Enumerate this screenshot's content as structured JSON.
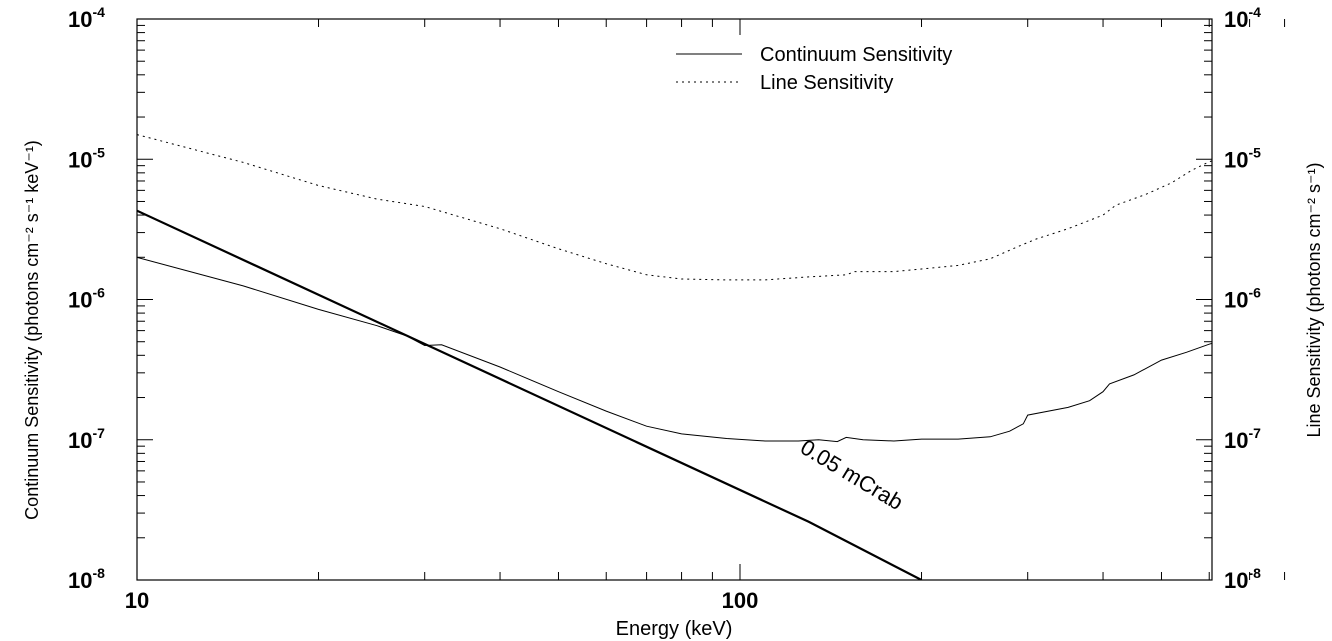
{
  "chart_data": {
    "type": "line",
    "title": "",
    "xlabel": "Energy (keV)",
    "ylabel_left": "Continuum Sensitivity (photons cm⁻² s⁻¹ keV⁻¹)",
    "ylabel_right": "Line Sensitivity (photons cm⁻² s⁻¹)",
    "xscale": "log",
    "yscale": "log",
    "xlim": [
      10,
      800
    ],
    "ylim": [
      1e-08,
      0.0001
    ],
    "x_ticks": [
      10,
      100
    ],
    "x_tick_labels": [
      "10",
      "100"
    ],
    "y_ticks": [
      1e-08,
      1e-07,
      1e-06,
      1e-05,
      0.0001
    ],
    "y_tick_labels": [
      {
        "base": "10",
        "exp": "-8"
      },
      {
        "base": "10",
        "exp": "-7"
      },
      {
        "base": "10",
        "exp": "-6"
      },
      {
        "base": "10",
        "exp": "-5"
      },
      {
        "base": "10",
        "exp": "-4"
      }
    ],
    "grid": false,
    "legend_position": "top-right",
    "series": [
      {
        "name": "Continuum Sensitivity",
        "style": "solid",
        "color": "#000000",
        "points": [
          [
            10,
            2e-06
          ],
          [
            15,
            1.25e-06
          ],
          [
            20,
            8.5e-07
          ],
          [
            25,
            6.5e-07
          ],
          [
            28,
            5.5e-07
          ],
          [
            30,
            4.7e-07
          ],
          [
            32,
            4.75e-07
          ],
          [
            40,
            3.3e-07
          ],
          [
            50,
            2.2e-07
          ],
          [
            60,
            1.6e-07
          ],
          [
            70,
            1.25e-07
          ],
          [
            80,
            1.1e-07
          ],
          [
            95,
            1.02e-07
          ],
          [
            110,
            9.8e-08
          ],
          [
            125,
            9.8e-08
          ],
          [
            135,
            1e-07
          ],
          [
            145,
            9.7e-08
          ],
          [
            150,
            1.04e-07
          ],
          [
            160,
            1e-07
          ],
          [
            180,
            9.8e-08
          ],
          [
            200,
            1.01e-07
          ],
          [
            230,
            1.01e-07
          ],
          [
            260,
            1.05e-07
          ],
          [
            280,
            1.15e-07
          ],
          [
            295,
            1.3e-07
          ],
          [
            300,
            1.5e-07
          ],
          [
            350,
            1.7e-07
          ],
          [
            380,
            1.9e-07
          ],
          [
            400,
            2.2e-07
          ],
          [
            410,
            2.5e-07
          ],
          [
            450,
            2.9e-07
          ],
          [
            500,
            3.7e-07
          ],
          [
            550,
            4.2e-07
          ],
          [
            600,
            4.8e-07
          ],
          [
            620,
            5e-07
          ]
        ]
      },
      {
        "name": "Line Sensitivity",
        "style": "dotted",
        "color": "#000000",
        "points": [
          [
            10,
            1.5e-05
          ],
          [
            15,
            9.5e-06
          ],
          [
            20,
            6.5e-06
          ],
          [
            25,
            5.2e-06
          ],
          [
            30,
            4.6e-06
          ],
          [
            40,
            3.2e-06
          ],
          [
            50,
            2.3e-06
          ],
          [
            60,
            1.8e-06
          ],
          [
            70,
            1.5e-06
          ],
          [
            80,
            1.4e-06
          ],
          [
            95,
            1.38e-06
          ],
          [
            110,
            1.38e-06
          ],
          [
            130,
            1.45e-06
          ],
          [
            150,
            1.5e-06
          ],
          [
            155,
            1.58e-06
          ],
          [
            180,
            1.58e-06
          ],
          [
            200,
            1.65e-06
          ],
          [
            230,
            1.75e-06
          ],
          [
            260,
            1.95e-06
          ],
          [
            290,
            2.4e-06
          ],
          [
            310,
            2.7e-06
          ],
          [
            350,
            3.2e-06
          ],
          [
            400,
            4e-06
          ],
          [
            420,
            4.7e-06
          ],
          [
            470,
            5.6e-06
          ],
          [
            520,
            6.8e-06
          ],
          [
            560,
            8.3e-06
          ],
          [
            600,
            9.6e-06
          ],
          [
            620,
            1e-05
          ]
        ]
      },
      {
        "name": "0.05 mCrab",
        "style": "solid-bold",
        "color": "#000000",
        "label": "0.05 mCrab",
        "points": [
          [
            10,
            4.3e-06
          ],
          [
            130,
            2.6e-08
          ],
          [
            200,
            1e-08
          ]
        ]
      }
    ],
    "legend": [
      {
        "label": "Continuum Sensitivity",
        "style": "solid"
      },
      {
        "label": "Line Sensitivity",
        "style": "dotted"
      }
    ],
    "annotations": [
      {
        "text": "0.05 mCrab",
        "x": 130,
        "y": 7e-08,
        "rotation_deg": 31
      }
    ]
  }
}
